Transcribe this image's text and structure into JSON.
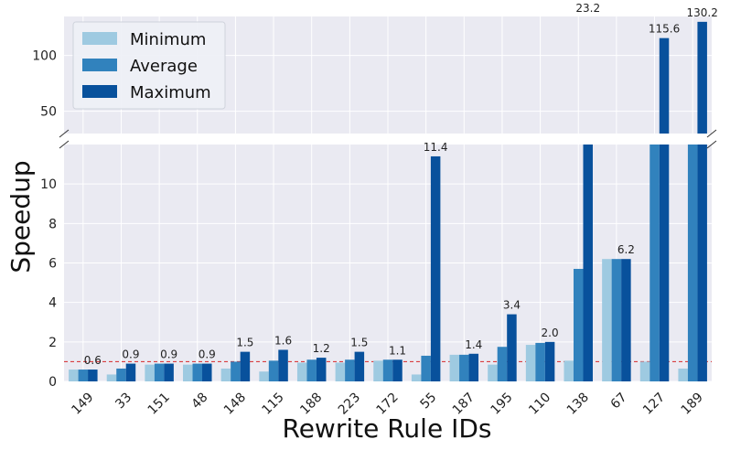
{
  "chart_data": {
    "type": "bar",
    "title": "",
    "xlabel": "Rewrite Rule IDs",
    "ylabel": "Speedup",
    "broken_axis": true,
    "ylim_lower": [
      0,
      12
    ],
    "ylim_upper": [
      30,
      135
    ],
    "yticks_lower": [
      0,
      2,
      4,
      6,
      8,
      10
    ],
    "yticks_upper": [
      50,
      100
    ],
    "grid": true,
    "legend": "top-left",
    "reference_line": {
      "y": 1.0,
      "color": "#d62728",
      "style": "dashed"
    },
    "categories": [
      "149",
      "33",
      "151",
      "48",
      "148",
      "115",
      "188",
      "223",
      "172",
      "55",
      "187",
      "195",
      "110",
      "138",
      "67",
      "127",
      "189"
    ],
    "series": [
      {
        "name": "Minimum",
        "color": "#9ecae1",
        "values": [
          0.6,
          0.35,
          0.85,
          0.85,
          0.65,
          0.5,
          0.95,
          0.95,
          1.05,
          0.35,
          1.35,
          0.85,
          1.85,
          1.05,
          6.2,
          1.0,
          0.65
        ]
      },
      {
        "name": "Average",
        "color": "#3182bd",
        "values": [
          0.6,
          0.65,
          0.9,
          0.9,
          1.0,
          1.05,
          1.1,
          1.1,
          1.1,
          1.3,
          1.35,
          1.75,
          1.95,
          5.7,
          6.2,
          15,
          21
        ]
      },
      {
        "name": "Maximum",
        "color": "#08519c",
        "values": [
          0.6,
          0.9,
          0.9,
          0.9,
          1.5,
          1.6,
          1.2,
          1.5,
          1.1,
          11.4,
          1.4,
          3.4,
          2.0,
          23.2,
          6.2,
          115.6,
          130.2
        ]
      }
    ],
    "data_labels": [
      "0.6",
      "0.9",
      "0.9",
      "0.9",
      "1.5",
      "1.6",
      "1.2",
      "1.5",
      "1.1",
      "11.4",
      "1.4",
      "3.4",
      "2.0",
      "23.2",
      "6.2",
      "115.6",
      "130.2"
    ]
  }
}
